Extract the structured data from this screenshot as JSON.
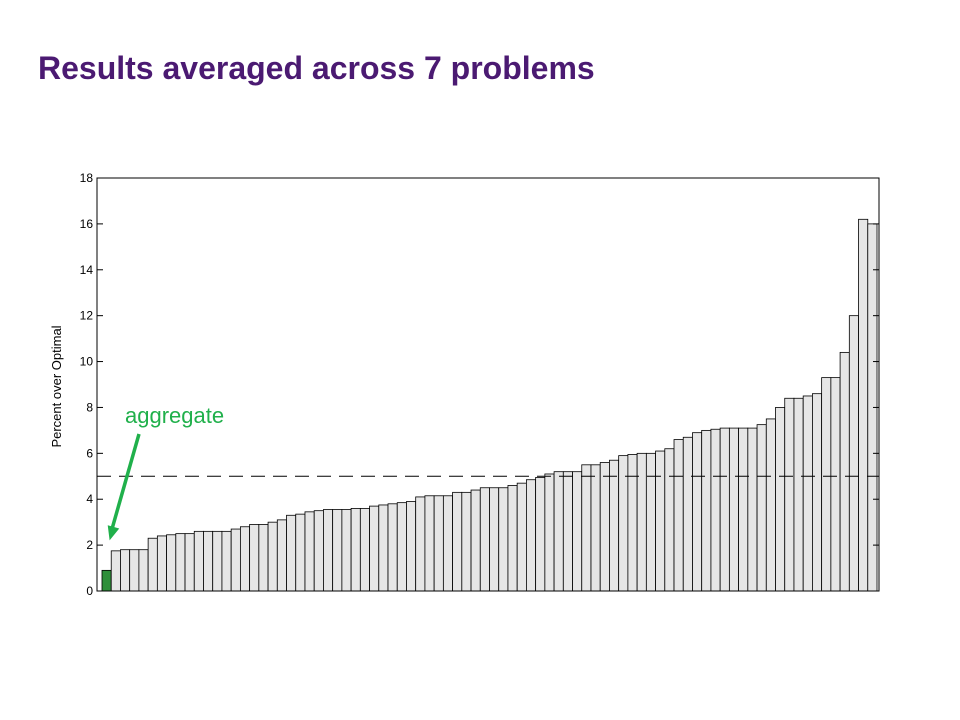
{
  "slide": {
    "title": "Results averaged across 7 problems"
  },
  "colors": {
    "title": "#4b1a72",
    "bar_fill": "#e6e6e6",
    "highlight_fill": "#2f8f3a",
    "annotation": "#20b04b"
  },
  "chart_data": {
    "type": "bar",
    "title": "",
    "xlabel": "",
    "ylabel": "Percent over Optimal",
    "ylim": [
      0,
      18
    ],
    "yticks": [
      0,
      2,
      4,
      6,
      8,
      10,
      12,
      14,
      16,
      18
    ],
    "reference_line": 5.0,
    "highlight_index": 0,
    "annotation": "aggregate",
    "values": [
      0.9,
      1.75,
      1.8,
      1.8,
      1.8,
      2.3,
      2.4,
      2.45,
      2.5,
      2.5,
      2.6,
      2.6,
      2.6,
      2.6,
      2.7,
      2.8,
      2.9,
      2.9,
      3.0,
      3.1,
      3.3,
      3.35,
      3.45,
      3.5,
      3.55,
      3.55,
      3.55,
      3.6,
      3.6,
      3.7,
      3.75,
      3.8,
      3.85,
      3.9,
      4.1,
      4.15,
      4.15,
      4.15,
      4.3,
      4.3,
      4.4,
      4.5,
      4.5,
      4.5,
      4.6,
      4.7,
      4.85,
      4.95,
      5.1,
      5.2,
      5.2,
      5.2,
      5.5,
      5.5,
      5.6,
      5.7,
      5.9,
      5.95,
      6.0,
      6.0,
      6.1,
      6.2,
      6.6,
      6.7,
      6.9,
      7.0,
      7.05,
      7.1,
      7.1,
      7.1,
      7.1,
      7.25,
      7.5,
      8.0,
      8.4,
      8.4,
      8.5,
      8.6,
      9.3,
      9.3,
      10.4,
      12.0,
      16.2,
      16.0
    ]
  }
}
